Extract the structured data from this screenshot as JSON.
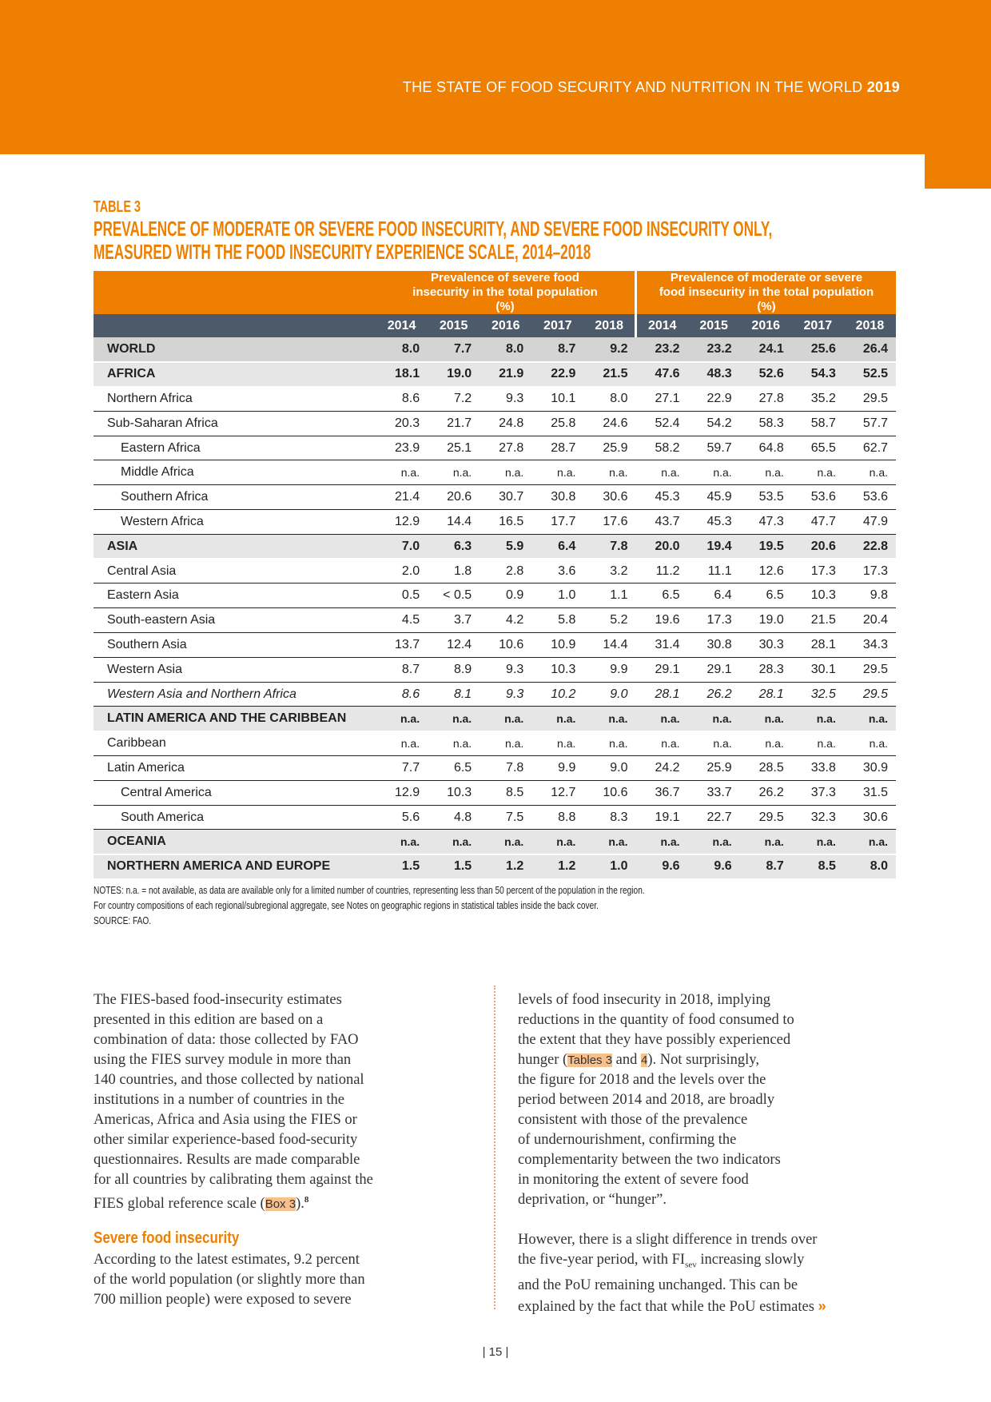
{
  "running_header": {
    "text": "THE STATE OF FOOD SECURITY AND NUTRITION IN THE WORLD",
    "year": "2019"
  },
  "table": {
    "label": "TABLE 3",
    "title_lines": [
      "PREVALENCE OF MODERATE OR SEVERE FOOD INSECURITY, AND SEVERE FOOD INSECURITY ONLY,",
      "MEASURED WITH THE FOOD INSECURITY EXPERIENCE SCALE, 2014–2018"
    ],
    "group_headers": [
      "Prevalence of severe food insecurity in the total population (%)",
      "Prevalence of moderate or severe food insecurity in the total population (%)"
    ],
    "years": [
      "2014",
      "2015",
      "2016",
      "2017",
      "2018",
      "2014",
      "2015",
      "2016",
      "2017",
      "2018"
    ],
    "rows": [
      {
        "label": "WORLD",
        "style": "agg-dark",
        "values": [
          "8.0",
          "7.7",
          "8.0",
          "8.7",
          "9.2",
          "23.2",
          "23.2",
          "24.1",
          "25.6",
          "26.4"
        ]
      },
      {
        "label": "AFRICA",
        "style": "agg-light",
        "values": [
          "18.1",
          "19.0",
          "21.9",
          "22.9",
          "21.5",
          "47.6",
          "48.3",
          "52.6",
          "54.3",
          "52.5"
        ]
      },
      {
        "label": "Northern Africa",
        "style": "",
        "values": [
          "8.6",
          "7.2",
          "9.3",
          "10.1",
          "8.0",
          "27.1",
          "22.9",
          "27.8",
          "35.2",
          "29.5"
        ]
      },
      {
        "label": "Sub-Saharan Africa",
        "style": "",
        "values": [
          "20.3",
          "21.7",
          "24.8",
          "25.8",
          "24.6",
          "52.4",
          "54.2",
          "58.3",
          "58.7",
          "57.7"
        ]
      },
      {
        "label": "Eastern Africa",
        "style": "indent",
        "values": [
          "23.9",
          "25.1",
          "27.8",
          "28.7",
          "25.9",
          "58.2",
          "59.7",
          "64.8",
          "65.5",
          "62.7"
        ]
      },
      {
        "label": "Middle Africa",
        "style": "indent",
        "values": [
          "n.a.",
          "n.a.",
          "n.a.",
          "n.a.",
          "n.a.",
          "n.a.",
          "n.a.",
          "n.a.",
          "n.a.",
          "n.a."
        ]
      },
      {
        "label": "Southern Africa",
        "style": "indent",
        "values": [
          "21.4",
          "20.6",
          "30.7",
          "30.8",
          "30.6",
          "45.3",
          "45.9",
          "53.5",
          "53.6",
          "53.6"
        ]
      },
      {
        "label": "Western Africa",
        "style": "indent",
        "values": [
          "12.9",
          "14.4",
          "16.5",
          "17.7",
          "17.6",
          "43.7",
          "45.3",
          "47.3",
          "47.7",
          "47.9"
        ]
      },
      {
        "label": "ASIA",
        "style": "agg-light",
        "values": [
          "7.0",
          "6.3",
          "5.9",
          "6.4",
          "7.8",
          "20.0",
          "19.4",
          "19.5",
          "20.6",
          "22.8"
        ]
      },
      {
        "label": "Central Asia",
        "style": "",
        "values": [
          "2.0",
          "1.8",
          "2.8",
          "3.6",
          "3.2",
          "11.2",
          "11.1",
          "12.6",
          "17.3",
          "17.3"
        ]
      },
      {
        "label": "Eastern Asia",
        "style": "",
        "values": [
          "0.5",
          "< 0.5",
          "0.9",
          "1.0",
          "1.1",
          "6.5",
          "6.4",
          "6.5",
          "10.3",
          "9.8"
        ]
      },
      {
        "label": "South-eastern Asia",
        "style": "",
        "values": [
          "4.5",
          "3.7",
          "4.2",
          "5.8",
          "5.2",
          "19.6",
          "17.3",
          "19.0",
          "21.5",
          "20.4"
        ]
      },
      {
        "label": "Southern Asia",
        "style": "",
        "values": [
          "13.7",
          "12.4",
          "10.6",
          "10.9",
          "14.4",
          "31.4",
          "30.8",
          "30.3",
          "28.1",
          "34.3"
        ]
      },
      {
        "label": "Western Asia",
        "style": "",
        "values": [
          "8.7",
          "8.9",
          "9.3",
          "10.3",
          "9.9",
          "29.1",
          "29.1",
          "28.3",
          "30.1",
          "29.5"
        ]
      },
      {
        "label": "Western Asia and Northern Africa",
        "style": "italic",
        "values": [
          "8.6",
          "8.1",
          "9.3",
          "10.2",
          "9.0",
          "28.1",
          "26.2",
          "28.1",
          "32.5",
          "29.5"
        ]
      },
      {
        "label": "LATIN AMERICA AND THE CARIBBEAN",
        "style": "agg-light",
        "values": [
          "n.a.",
          "n.a.",
          "n.a.",
          "n.a.",
          "n.a.",
          "n.a.",
          "n.a.",
          "n.a.",
          "n.a.",
          "n.a."
        ]
      },
      {
        "label": "Caribbean",
        "style": "",
        "values": [
          "n.a.",
          "n.a.",
          "n.a.",
          "n.a.",
          "n.a.",
          "n.a.",
          "n.a.",
          "n.a.",
          "n.a.",
          "n.a."
        ]
      },
      {
        "label": "Latin America",
        "style": "",
        "values": [
          "7.7",
          "6.5",
          "7.8",
          "9.9",
          "9.0",
          "24.2",
          "25.9",
          "28.5",
          "33.8",
          "30.9"
        ]
      },
      {
        "label": "Central America",
        "style": "indent",
        "values": [
          "12.9",
          "10.3",
          "8.5",
          "12.7",
          "10.6",
          "36.7",
          "33.7",
          "26.2",
          "37.3",
          "31.5"
        ]
      },
      {
        "label": "South America",
        "style": "indent",
        "values": [
          "5.6",
          "4.8",
          "7.5",
          "8.8",
          "8.3",
          "19.1",
          "22.7",
          "29.5",
          "32.3",
          "30.6"
        ]
      },
      {
        "label": "OCEANIA",
        "style": "agg-light",
        "values": [
          "n.a.",
          "n.a.",
          "n.a.",
          "n.a.",
          "n.a.",
          "n.a.",
          "n.a.",
          "n.a.",
          "n.a.",
          "n.a."
        ]
      },
      {
        "label": "NORTHERN AMERICA AND EUROPE",
        "style": "agg-light",
        "values": [
          "1.5",
          "1.5",
          "1.2",
          "1.2",
          "1.0",
          "9.6",
          "9.6",
          "8.7",
          "8.5",
          "8.0"
        ]
      }
    ],
    "notes": [
      "NOTES: n.a. = not available, as data are available only for a limited number of countries, representing less than 50 percent of the population in the region.",
      "For country compositions of each regional/subregional aggregate, see Notes on geographic regions in statistical tables inside the back cover.",
      "SOURCE: FAO."
    ]
  },
  "body": {
    "left_p1": [
      "The FIES-based food-insecurity estimates",
      "presented in this edition are based on a",
      "combination of data: those collected by FAO",
      "using the FIES survey module in more than",
      "140 countries, and those collected by national",
      "institutions in a number of countries in the",
      "Americas, Africa and Asia using the FIES or",
      "other similar experience-based food-security",
      "questionnaires. Results are made comparable",
      "for all countries by calibrating them against the"
    ],
    "left_p1_last": {
      "before": "FIES global reference scale (",
      "link": "Box 3",
      "after": ").",
      "footnote": "8"
    },
    "subheading": "Severe food insecurity",
    "left_p2": [
      "According to the latest estimates, 9.2 percent",
      "of the world population (or slightly more than",
      "700 million people) were exposed to severe"
    ],
    "right_p1_a": [
      "levels of food insecurity in 2018, implying",
      "reductions in the quantity of food consumed to",
      "the extent that they have possibly experienced"
    ],
    "right_p1_link_line": {
      "before": "hunger (",
      "link1": "Tables 3",
      "mid": " and ",
      "link2": "4",
      "after": "). Not surprisingly,"
    },
    "right_p1_b": [
      "the figure for 2018 and the levels over the",
      "period between 2014 and 2018, are broadly",
      "consistent with those of the prevalence",
      "of undernourishment, confirming the",
      "complementarity between the two indicators",
      "in monitoring the extent of severe food",
      "deprivation, or “hunger”."
    ],
    "right_p2_l1": "However, there is a slight difference in trends over",
    "right_p2_l2": {
      "before": "the five-year period, with FI",
      "sub": "sev",
      "after": " increasing slowly"
    },
    "right_p2_rest": [
      "and the PoU remaining unchanged. This can be",
      "explained by the fact that while the PoU estimates"
    ],
    "continue_icon": "»"
  },
  "page_number": "| 15 |",
  "colors": {
    "accent": "#ee7f00",
    "header_dark": "#4d5a69",
    "highlight": "#f8c18c"
  }
}
